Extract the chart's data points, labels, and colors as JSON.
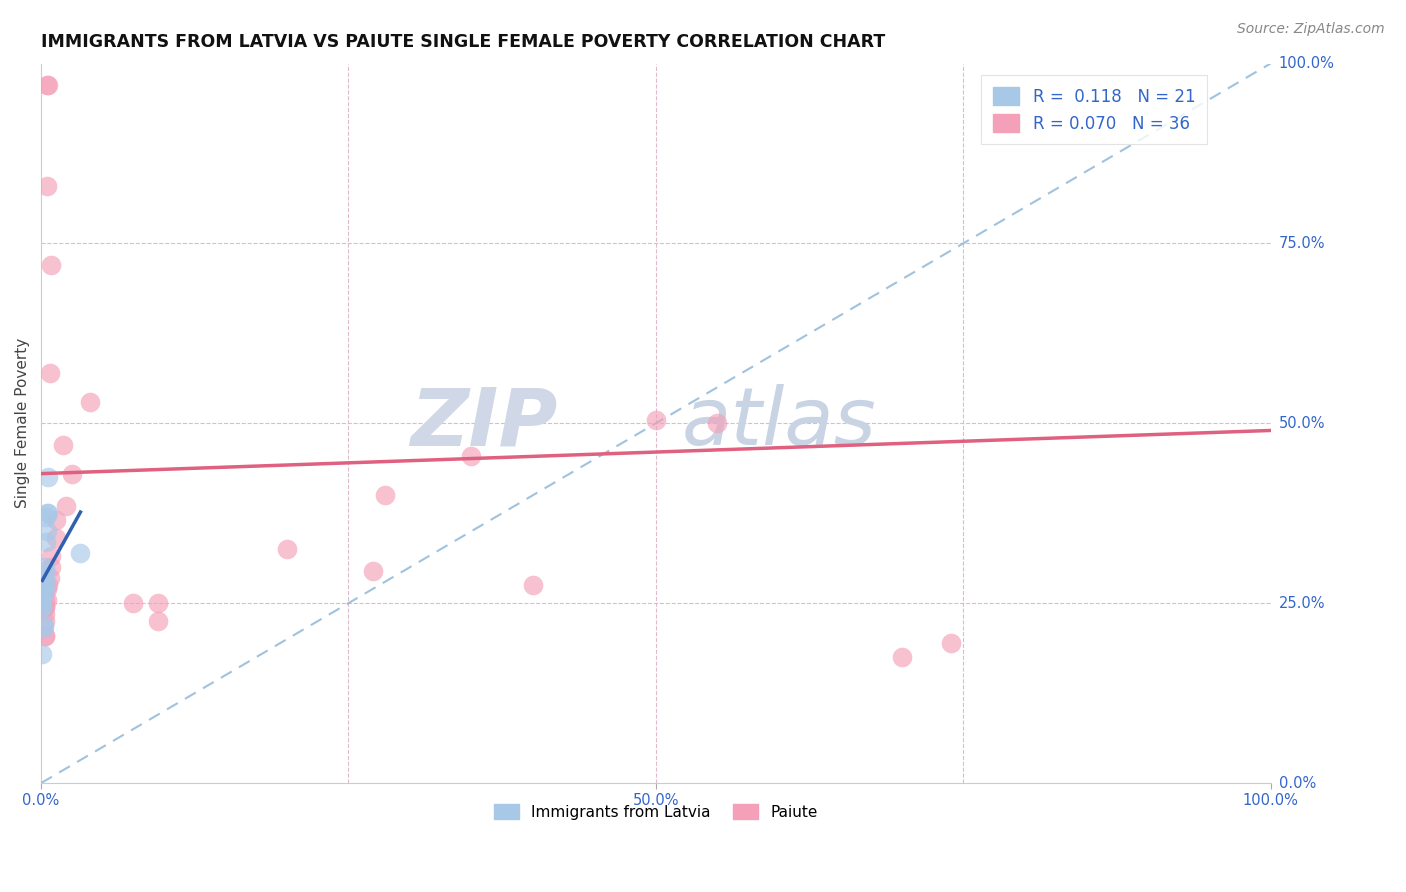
{
  "title": "IMMIGRANTS FROM LATVIA VS PAIUTE SINGLE FEMALE POVERTY CORRELATION CHART",
  "source": "Source: ZipAtlas.com",
  "xlabel_label": "Immigrants from Latvia",
  "ylabel_label": "Single Female Poverty",
  "xlim": [
    0.0,
    1.0
  ],
  "ylim": [
    0.0,
    1.0
  ],
  "legend_R_blue": "0.118",
  "legend_N_blue": "21",
  "legend_R_pink": "0.070",
  "legend_N_pink": "36",
  "blue_color": "#a8c8e8",
  "pink_color": "#f4a0b8",
  "blue_line_color": "#3060b0",
  "pink_line_color": "#e06080",
  "dashed_line_color": "#90b8d8",
  "blue_scatter_x": [
    0.005,
    0.006,
    0.004,
    0.005,
    0.003,
    0.003,
    0.003,
    0.004,
    0.002,
    0.002,
    0.002,
    0.001,
    0.001,
    0.001,
    0.001,
    0.006,
    0.004,
    0.002,
    0.032,
    0.002,
    0.001
  ],
  "blue_scatter_y": [
    0.375,
    0.375,
    0.37,
    0.35,
    0.3,
    0.295,
    0.285,
    0.275,
    0.275,
    0.265,
    0.265,
    0.255,
    0.255,
    0.245,
    0.245,
    0.425,
    0.335,
    0.215,
    0.32,
    0.22,
    0.18
  ],
  "pink_scatter_x": [
    0.005,
    0.006,
    0.005,
    0.008,
    0.007,
    0.04,
    0.018,
    0.025,
    0.02,
    0.012,
    0.012,
    0.008,
    0.008,
    0.007,
    0.006,
    0.005,
    0.005,
    0.003,
    0.003,
    0.003,
    0.55,
    0.35,
    0.74,
    0.7,
    0.5,
    0.28,
    0.2,
    0.27,
    0.4,
    0.095,
    0.095,
    0.075,
    0.003,
    0.003,
    0.003,
    0.003
  ],
  "pink_scatter_y": [
    0.97,
    0.97,
    0.83,
    0.72,
    0.57,
    0.53,
    0.47,
    0.43,
    0.385,
    0.365,
    0.34,
    0.315,
    0.3,
    0.285,
    0.275,
    0.27,
    0.255,
    0.255,
    0.245,
    0.235,
    0.5,
    0.455,
    0.195,
    0.175,
    0.505,
    0.4,
    0.325,
    0.295,
    0.275,
    0.25,
    0.225,
    0.25,
    0.205,
    0.205,
    0.225,
    0.245
  ],
  "pink_line_x0": 0.0,
  "pink_line_y0": 0.43,
  "pink_line_x1": 1.0,
  "pink_line_y1": 0.49,
  "blue_line_x0": 0.0,
  "blue_line_y0": 0.255,
  "blue_line_x1": 0.032,
  "blue_line_y1": 0.325
}
